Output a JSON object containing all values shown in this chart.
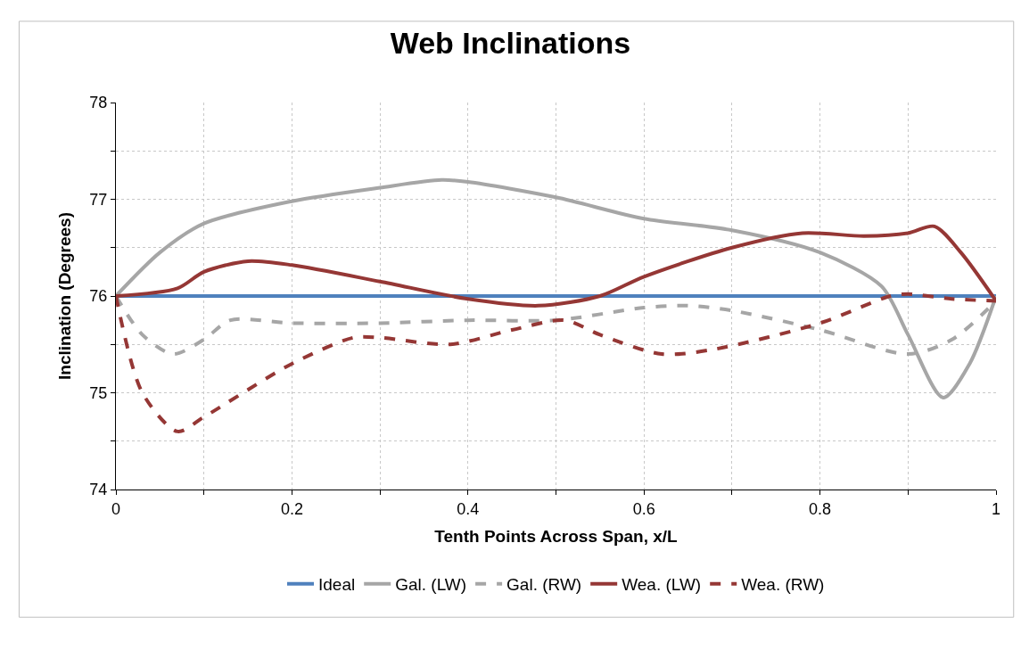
{
  "chart_data": {
    "type": "line",
    "title": "Web Inclinations",
    "xlabel": "Tenth Points Across Span, x/L",
    "ylabel": "Inclination (Degrees)",
    "xlim": [
      0,
      1
    ],
    "ylim": [
      74,
      78
    ],
    "xticks": [
      0,
      {
        "value": 0.1,
        "label": null
      },
      0.2,
      {
        "value": 0.3,
        "label": null
      },
      0.4,
      {
        "value": 0.5,
        "label": null
      },
      0.6,
      {
        "value": 0.7,
        "label": null
      },
      0.8,
      {
        "value": 0.9,
        "label": null
      },
      1
    ],
    "yticks": [
      74,
      {
        "value": 74.5,
        "label": null
      },
      75,
      {
        "value": 75.5,
        "label": null
      },
      76,
      {
        "value": 76.5,
        "label": null
      },
      77,
      {
        "value": 77.5,
        "label": null
      },
      78
    ],
    "grid": true,
    "legend": "bottom",
    "marker": "none",
    "series": [
      {
        "name": "Ideal",
        "color": "#4f81bd",
        "line_style": "solid",
        "x": [
          0,
          1
        ],
        "values": [
          76,
          76
        ]
      },
      {
        "name": "Gal. (LW)",
        "color": "#a6a6a6",
        "line_style": "solid",
        "x": [
          0,
          0.05,
          0.1,
          0.2,
          0.3,
          0.37,
          0.4,
          0.5,
          0.6,
          0.7,
          0.8,
          0.87,
          0.9,
          0.94,
          0.97,
          1
        ],
        "values": [
          76,
          76.45,
          76.75,
          76.98,
          77.12,
          77.2,
          77.18,
          77.02,
          76.8,
          76.68,
          76.45,
          76.1,
          75.6,
          74.95,
          75.3,
          76
        ]
      },
      {
        "name": "Gal. (RW)",
        "color": "#a6a6a6",
        "line_style": "dashed",
        "x": [
          0,
          0.03,
          0.065,
          0.1,
          0.13,
          0.2,
          0.3,
          0.4,
          0.5,
          0.6,
          0.65,
          0.7,
          0.8,
          0.9,
          0.95,
          1
        ],
        "values": [
          76,
          75.6,
          75.4,
          75.55,
          75.75,
          75.72,
          75.72,
          75.75,
          75.75,
          75.88,
          75.9,
          75.85,
          75.65,
          75.4,
          75.55,
          75.95
        ]
      },
      {
        "name": "Wea. (LW)",
        "color": "#953735",
        "line_style": "solid",
        "x": [
          0,
          0.07,
          0.1,
          0.15,
          0.2,
          0.3,
          0.4,
          0.48,
          0.55,
          0.6,
          0.7,
          0.78,
          0.85,
          0.9,
          0.93,
          0.96,
          1
        ],
        "values": [
          76,
          76.08,
          76.25,
          76.36,
          76.32,
          76.15,
          75.97,
          75.9,
          76.0,
          76.2,
          76.5,
          76.65,
          76.62,
          76.65,
          76.72,
          76.45,
          75.95
        ]
      },
      {
        "name": "Wea. (RW)",
        "color": "#953735",
        "line_style": "dashed",
        "x": [
          0,
          0.03,
          0.07,
          0.1,
          0.2,
          0.27,
          0.3,
          0.38,
          0.45,
          0.51,
          0.55,
          0.62,
          0.68,
          0.8,
          0.88,
          0.9,
          0.95,
          1
        ],
        "values": [
          76,
          75.0,
          74.6,
          74.75,
          75.3,
          75.57,
          75.57,
          75.5,
          75.65,
          75.75,
          75.6,
          75.4,
          75.45,
          75.72,
          76.0,
          76.02,
          75.97,
          75.95
        ]
      }
    ]
  }
}
